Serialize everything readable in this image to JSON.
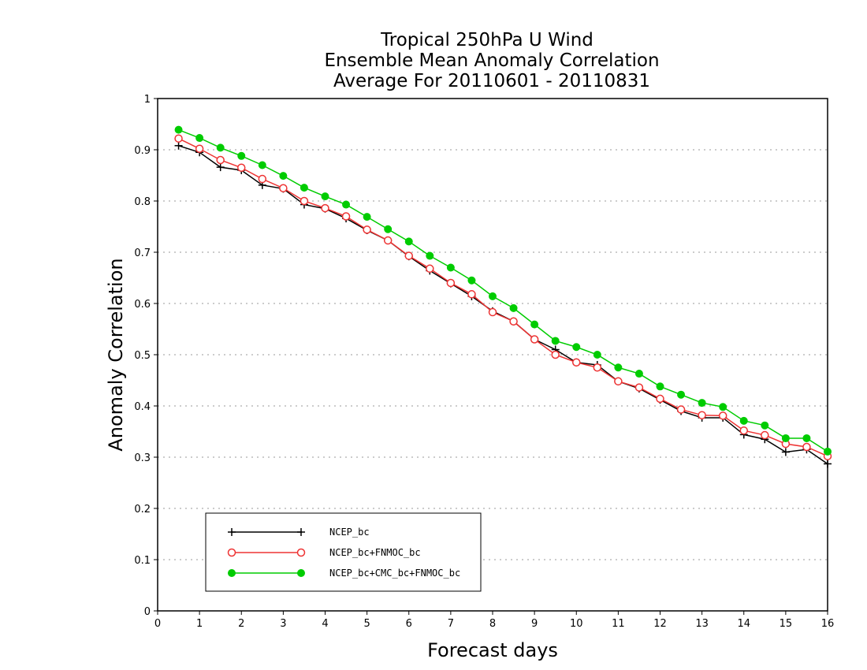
{
  "chart_data": {
    "type": "line",
    "title_lines": [
      "Tropical 250hPa U Wind",
      "Ensemble Mean Anomaly Correlation",
      "Average For 20110601 - 20110831"
    ],
    "xlabel": "Forecast days",
    "ylabel": "Anomaly Correlation",
    "xlim": [
      0,
      16
    ],
    "ylim": [
      0,
      1
    ],
    "x_ticks": [
      "0",
      "1",
      "2",
      "3",
      "4",
      "5",
      "6",
      "7",
      "8",
      "9",
      "10",
      "11",
      "12",
      "13",
      "14",
      "15",
      "16"
    ],
    "y_ticks": [
      "0",
      "0.1",
      "0.2",
      "0.3",
      "0.4",
      "0.5",
      "0.6",
      "0.7",
      "0.8",
      "0.9",
      "1"
    ],
    "grid": true,
    "legend_position": "bottom-left",
    "x": [
      0.5,
      1,
      1.5,
      2,
      2.5,
      3,
      3.5,
      4,
      4.5,
      5,
      5.5,
      6,
      6.5,
      7,
      7.5,
      8,
      8.5,
      9,
      9.5,
      10,
      10.5,
      11,
      11.5,
      12,
      12.5,
      13,
      13.5,
      14,
      14.5,
      15,
      15.5,
      16
    ],
    "series": [
      {
        "name": "NCEP_bc",
        "color": "#000000",
        "marker": "plus",
        "values": [
          0.908,
          0.895,
          0.866,
          0.86,
          0.831,
          0.824,
          0.793,
          0.785,
          0.766,
          0.743,
          0.723,
          0.692,
          0.664,
          0.639,
          0.614,
          0.585,
          0.565,
          0.53,
          0.51,
          0.485,
          0.48,
          0.448,
          0.434,
          0.412,
          0.39,
          0.377,
          0.377,
          0.344,
          0.335,
          0.31,
          0.315,
          0.287
        ]
      },
      {
        "name": "NCEP_bc+FNMOC_bc",
        "color": "#ee3333",
        "marker": "open-circle",
        "values": [
          0.922,
          0.902,
          0.88,
          0.865,
          0.843,
          0.825,
          0.8,
          0.786,
          0.77,
          0.744,
          0.723,
          0.693,
          0.668,
          0.64,
          0.618,
          0.583,
          0.565,
          0.53,
          0.5,
          0.485,
          0.475,
          0.448,
          0.436,
          0.414,
          0.393,
          0.382,
          0.381,
          0.352,
          0.343,
          0.326,
          0.32,
          0.302
        ]
      },
      {
        "name": "NCEP_bc+CMC_bc+FNMOC_bc",
        "color": "#00cc00",
        "marker": "filled-circle",
        "values": [
          0.939,
          0.923,
          0.904,
          0.888,
          0.87,
          0.849,
          0.826,
          0.809,
          0.793,
          0.769,
          0.745,
          0.721,
          0.693,
          0.67,
          0.645,
          0.614,
          0.591,
          0.559,
          0.527,
          0.515,
          0.5,
          0.475,
          0.463,
          0.438,
          0.422,
          0.406,
          0.398,
          0.371,
          0.362,
          0.337,
          0.337,
          0.311
        ]
      }
    ]
  }
}
